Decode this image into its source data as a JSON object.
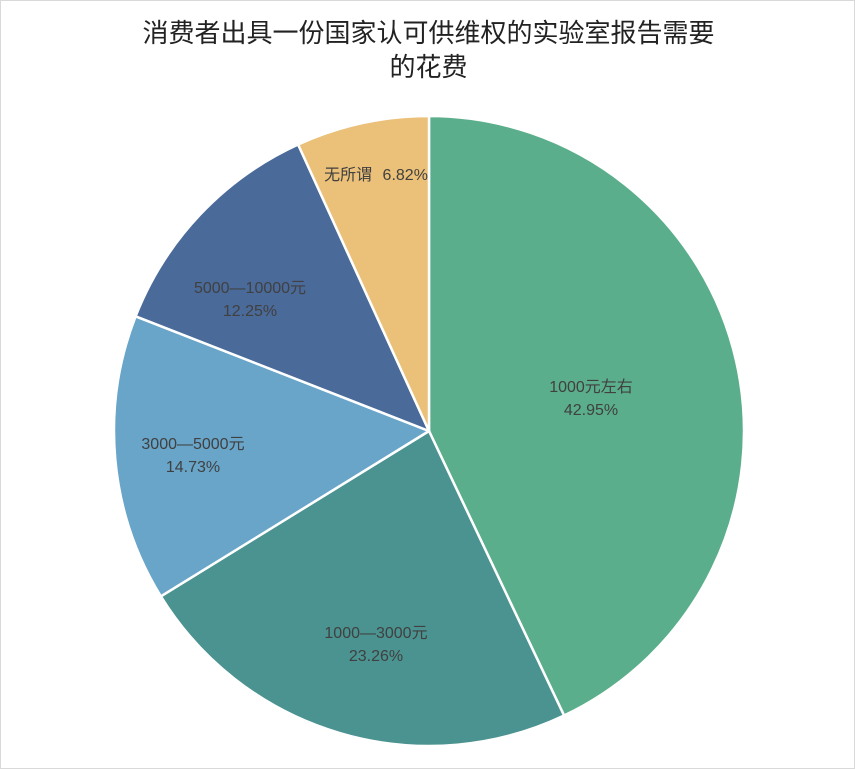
{
  "chart_data": {
    "type": "pie",
    "title_line1": "消费者出具一份国家认可供维权的实验室报告需要",
    "title_line2": "的花费",
    "categories": [
      "1000元左右",
      "1000—3000元",
      "3000—5000元",
      "5000—10000元",
      "无所谓"
    ],
    "values": [
      42.95,
      23.26,
      14.73,
      12.25,
      6.82
    ],
    "value_labels": [
      "42.95%",
      "23.26%",
      "14.73%",
      "12.25%",
      "6.82%"
    ],
    "colors": [
      "#5aae8b",
      "#4a9390",
      "#68a5c9",
      "#4a6a9a",
      "#ebc079"
    ],
    "legend": "none"
  }
}
